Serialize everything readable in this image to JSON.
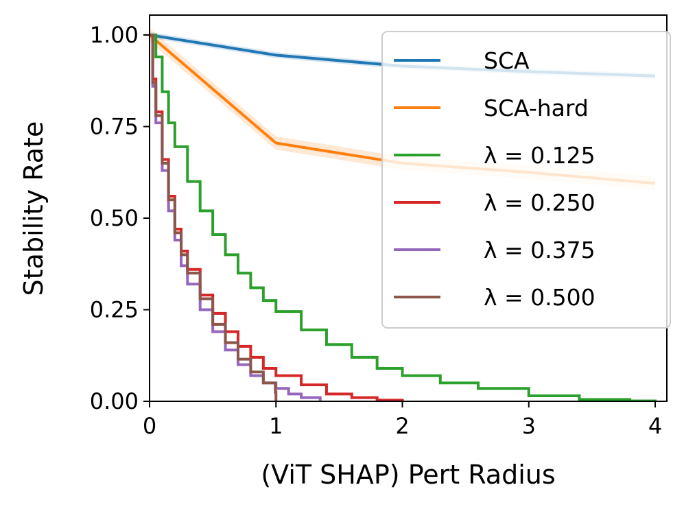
{
  "chart_data": {
    "type": "line",
    "title": "",
    "xlabel": "(ViT SHAP) Pert Radius",
    "ylabel": "Stability Rate",
    "xlim": [
      0,
      4.1
    ],
    "ylim": [
      0,
      1.05
    ],
    "xticks": [
      0,
      1,
      2,
      3,
      4
    ],
    "xtick_labels": [
      "0",
      "1",
      "2",
      "3",
      "4"
    ],
    "yticks": [
      0,
      0.25,
      0.5,
      0.75,
      1.0
    ],
    "ytick_labels": [
      "0.00",
      "0.25",
      "0.50",
      "0.75",
      "1.00"
    ],
    "legend_position": "top-right",
    "series": [
      {
        "name": "SCA",
        "color": "#1f77b4",
        "style": "line",
        "x": [
          0,
          1,
          2,
          3,
          4
        ],
        "y": [
          1.0,
          0.945,
          0.915,
          0.9,
          0.888
        ],
        "band": 0.008
      },
      {
        "name": "SCA-hard",
        "color": "#ff7f0e",
        "style": "line",
        "x": [
          0,
          1,
          2,
          3,
          4
        ],
        "y": [
          1.0,
          0.705,
          0.65,
          0.625,
          0.595
        ],
        "band": 0.018
      },
      {
        "name": "λ = 0.125",
        "color": "#2ca02c",
        "style": "step",
        "x": [
          0,
          0.05,
          0.1,
          0.15,
          0.2,
          0.3,
          0.4,
          0.5,
          0.6,
          0.7,
          0.8,
          0.9,
          1.0,
          1.2,
          1.4,
          1.6,
          1.8,
          2.0,
          2.3,
          2.6,
          3.0,
          3.4,
          3.8,
          4.0
        ],
        "y": [
          1.0,
          0.94,
          0.845,
          0.76,
          0.695,
          0.6,
          0.52,
          0.455,
          0.4,
          0.35,
          0.31,
          0.275,
          0.245,
          0.195,
          0.155,
          0.12,
          0.09,
          0.07,
          0.05,
          0.035,
          0.015,
          0.005,
          0.001,
          0.0
        ]
      },
      {
        "name": "λ = 0.250",
        "color": "#d62728",
        "style": "step",
        "x": [
          0,
          0.025,
          0.05,
          0.1,
          0.15,
          0.2,
          0.25,
          0.3,
          0.4,
          0.5,
          0.6,
          0.7,
          0.8,
          0.9,
          1.0,
          1.2,
          1.4,
          1.6,
          1.8,
          2.0
        ],
        "y": [
          1.0,
          0.88,
          0.79,
          0.66,
          0.56,
          0.47,
          0.41,
          0.36,
          0.29,
          0.24,
          0.19,
          0.15,
          0.12,
          0.09,
          0.07,
          0.045,
          0.02,
          0.01,
          0.003,
          0.0
        ]
      },
      {
        "name": "λ = 0.375",
        "color": "#9467bd",
        "style": "step",
        "x": [
          0,
          0.025,
          0.05,
          0.1,
          0.15,
          0.2,
          0.25,
          0.3,
          0.4,
          0.5,
          0.6,
          0.7,
          0.8,
          0.9,
          1.0,
          1.1,
          1.2,
          1.35
        ],
        "y": [
          1.0,
          0.86,
          0.76,
          0.63,
          0.52,
          0.44,
          0.37,
          0.32,
          0.25,
          0.19,
          0.14,
          0.1,
          0.07,
          0.05,
          0.035,
          0.02,
          0.01,
          0.0
        ]
      },
      {
        "name": "λ = 0.500",
        "color": "#8c564b",
        "style": "step",
        "x": [
          0,
          0.025,
          0.05,
          0.1,
          0.15,
          0.2,
          0.25,
          0.3,
          0.4,
          0.5,
          0.6,
          0.7,
          0.8,
          0.9,
          0.995,
          1.0
        ],
        "y": [
          1.0,
          0.87,
          0.78,
          0.65,
          0.55,
          0.46,
          0.4,
          0.35,
          0.28,
          0.21,
          0.16,
          0.115,
          0.08,
          0.05,
          0.025,
          0.0
        ]
      }
    ]
  }
}
